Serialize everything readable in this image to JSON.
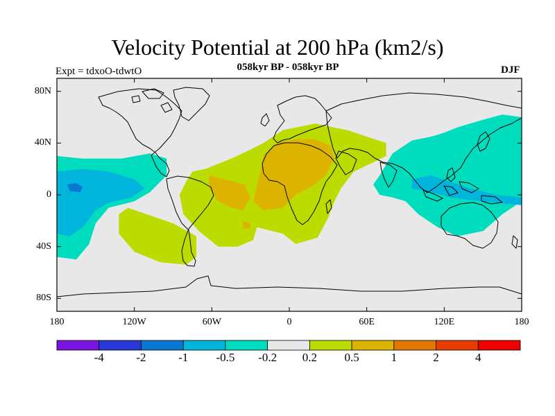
{
  "header": {
    "title": "Velocity Potential at 200 hPa (km2/s)",
    "subtitle": "058kyr BP - 058kyr BP",
    "experiment": "Expt = tdxoO-tdwtO",
    "season": "DJF"
  },
  "map": {
    "projection": "cylindrical-equidistant",
    "lon_range": [
      180,
      -180
    ],
    "lat_range": [
      -90,
      90
    ],
    "background_color": "#e8e8e8",
    "coastline_color": "#000000",
    "y_ticks": [
      {
        "lat": 80,
        "label": "80N"
      },
      {
        "lat": 40,
        "label": "40N"
      },
      {
        "lat": 0,
        "label": "0"
      },
      {
        "lat": -40,
        "label": "40S"
      },
      {
        "lat": -80,
        "label": "80S"
      }
    ],
    "x_ticks": [
      {
        "lon": -180,
        "label": "180"
      },
      {
        "lon": -120,
        "label": "120W"
      },
      {
        "lon": -60,
        "label": "60W"
      },
      {
        "lon": 0,
        "label": "0"
      },
      {
        "lon": 60,
        "label": "60E"
      },
      {
        "lon": 120,
        "label": "120E"
      },
      {
        "lon": 180,
        "label": "180"
      }
    ]
  },
  "colorbar": {
    "colors": [
      "#7a14e0",
      "#2838d2",
      "#0a78d2",
      "#00b4dc",
      "#00dcbe",
      "#e8e8e8",
      "#bcdc00",
      "#dcb400",
      "#e07800",
      "#e63c00",
      "#ee0000"
    ],
    "labels": [
      "-4",
      "-2",
      "-1",
      "-0.5",
      "-0.2",
      "0.2",
      "0.5",
      "1",
      "2",
      "4"
    ]
  },
  "anomaly_regions": [
    {
      "level": "0.2 to 0.5",
      "color": "#bcdc00",
      "area": "Atlantic / Africa / Eurasia / S. America",
      "points": [
        [
          -20,
          40
        ],
        [
          -5,
          50
        ],
        [
          20,
          55
        ],
        [
          45,
          50
        ],
        [
          60,
          45
        ],
        [
          75,
          40
        ],
        [
          75,
          30
        ],
        [
          65,
          25
        ],
        [
          50,
          18
        ],
        [
          40,
          5
        ],
        [
          35,
          -5
        ],
        [
          30,
          -18
        ],
        [
          22,
          -33
        ],
        [
          5,
          -38
        ],
        [
          -5,
          -30
        ],
        [
          -25,
          -25
        ],
        [
          -28,
          -35
        ],
        [
          -40,
          -40
        ],
        [
          -55,
          -40
        ],
        [
          -70,
          -28
        ],
        [
          -82,
          -15
        ],
        [
          -85,
          0
        ],
        [
          -80,
          10
        ],
        [
          -75,
          18
        ],
        [
          -65,
          20
        ],
        [
          -45,
          28
        ],
        [
          -30,
          35
        ]
      ]
    },
    {
      "level": "0.2 to 0.5",
      "color": "#bcdc00",
      "area": "South Pacific",
      "points": [
        [
          -125,
          -10
        ],
        [
          -90,
          -22
        ],
        [
          -72,
          -32
        ],
        [
          -72,
          -48
        ],
        [
          -80,
          -54
        ],
        [
          -100,
          -52
        ],
        [
          -120,
          -44
        ],
        [
          -132,
          -30
        ],
        [
          -132,
          -15
        ]
      ]
    },
    {
      "level": "0.5 to 1",
      "color": "#dcb400",
      "area": "North Africa / Atlantic",
      "points": [
        [
          -20,
          30
        ],
        [
          -10,
          40
        ],
        [
          5,
          43
        ],
        [
          20,
          43
        ],
        [
          32,
          38
        ],
        [
          35,
          28
        ],
        [
          28,
          15
        ],
        [
          20,
          8
        ],
        [
          5,
          0
        ],
        [
          -5,
          -10
        ],
        [
          -20,
          -12
        ],
        [
          -28,
          -5
        ],
        [
          -25,
          8
        ],
        [
          -22,
          20
        ]
      ]
    },
    {
      "level": "0.5 to 1",
      "color": "#dcb400",
      "area": "South America",
      "points": [
        [
          -62,
          15
        ],
        [
          -50,
          12
        ],
        [
          -35,
          8
        ],
        [
          -30,
          -2
        ],
        [
          -36,
          -12
        ],
        [
          -45,
          -10
        ],
        [
          -55,
          -5
        ],
        [
          -62,
          5
        ]
      ]
    },
    {
      "level": "0.5 to 1",
      "color": "#dcb400",
      "area": "South Atlantic",
      "points": [
        [
          -36,
          -20
        ],
        [
          -30,
          -22
        ],
        [
          -30,
          -26
        ],
        [
          -36,
          -26
        ]
      ]
    },
    {
      "level": "-0.5 to -0.2",
      "color": "#00dcbe",
      "area": "Central / East Pacific",
      "points": [
        [
          -180,
          30
        ],
        [
          -160,
          28
        ],
        [
          -130,
          28
        ],
        [
          -108,
          32
        ],
        [
          -95,
          28
        ],
        [
          -95,
          15
        ],
        [
          -108,
          2
        ],
        [
          -120,
          -5
        ],
        [
          -140,
          -10
        ],
        [
          -150,
          -22
        ],
        [
          -155,
          -38
        ],
        [
          -165,
          -50
        ],
        [
          -180,
          -48
        ]
      ]
    },
    {
      "level": "-0.5 to -0.2",
      "color": "#00dcbe",
      "area": "Asia / W. Pacific",
      "points": [
        [
          70,
          15
        ],
        [
          80,
          32
        ],
        [
          95,
          42
        ],
        [
          110,
          45
        ],
        [
          120,
          48
        ],
        [
          130,
          52
        ],
        [
          140,
          55
        ],
        [
          150,
          58
        ],
        [
          165,
          62
        ],
        [
          180,
          60
        ],
        [
          180,
          -5
        ],
        [
          165,
          -15
        ],
        [
          150,
          -28
        ],
        [
          130,
          -32
        ],
        [
          115,
          -25
        ],
        [
          100,
          -15
        ],
        [
          90,
          -5
        ],
        [
          80,
          -2
        ],
        [
          70,
          0
        ],
        [
          65,
          8
        ]
      ]
    },
    {
      "level": "-1 to -0.5",
      "color": "#00b4dc",
      "area": "Central Pacific",
      "points": [
        [
          -180,
          18
        ],
        [
          -160,
          20
        ],
        [
          -140,
          18
        ],
        [
          -120,
          12
        ],
        [
          -112,
          5
        ],
        [
          -122,
          -2
        ],
        [
          -140,
          -6
        ],
        [
          -150,
          -12
        ],
        [
          -160,
          -25
        ],
        [
          -170,
          -32
        ],
        [
          -180,
          -30
        ]
      ]
    },
    {
      "level": "-1 to -0.5",
      "color": "#00b4dc",
      "area": "Maritime Continent",
      "points": [
        [
          95,
          12
        ],
        [
          110,
          15
        ],
        [
          125,
          10
        ],
        [
          140,
          5
        ],
        [
          160,
          0
        ],
        [
          180,
          -2
        ],
        [
          180,
          -8
        ],
        [
          160,
          -6
        ],
        [
          140,
          -4
        ],
        [
          125,
          -2
        ],
        [
          110,
          2
        ],
        [
          95,
          5
        ]
      ]
    },
    {
      "level": "-2 to -1",
      "color": "#0a78d2",
      "area": "Central Pacific core",
      "points": [
        [
          -172,
          8
        ],
        [
          -165,
          9
        ],
        [
          -160,
          6
        ],
        [
          -162,
          2
        ],
        [
          -170,
          3
        ]
      ]
    }
  ]
}
